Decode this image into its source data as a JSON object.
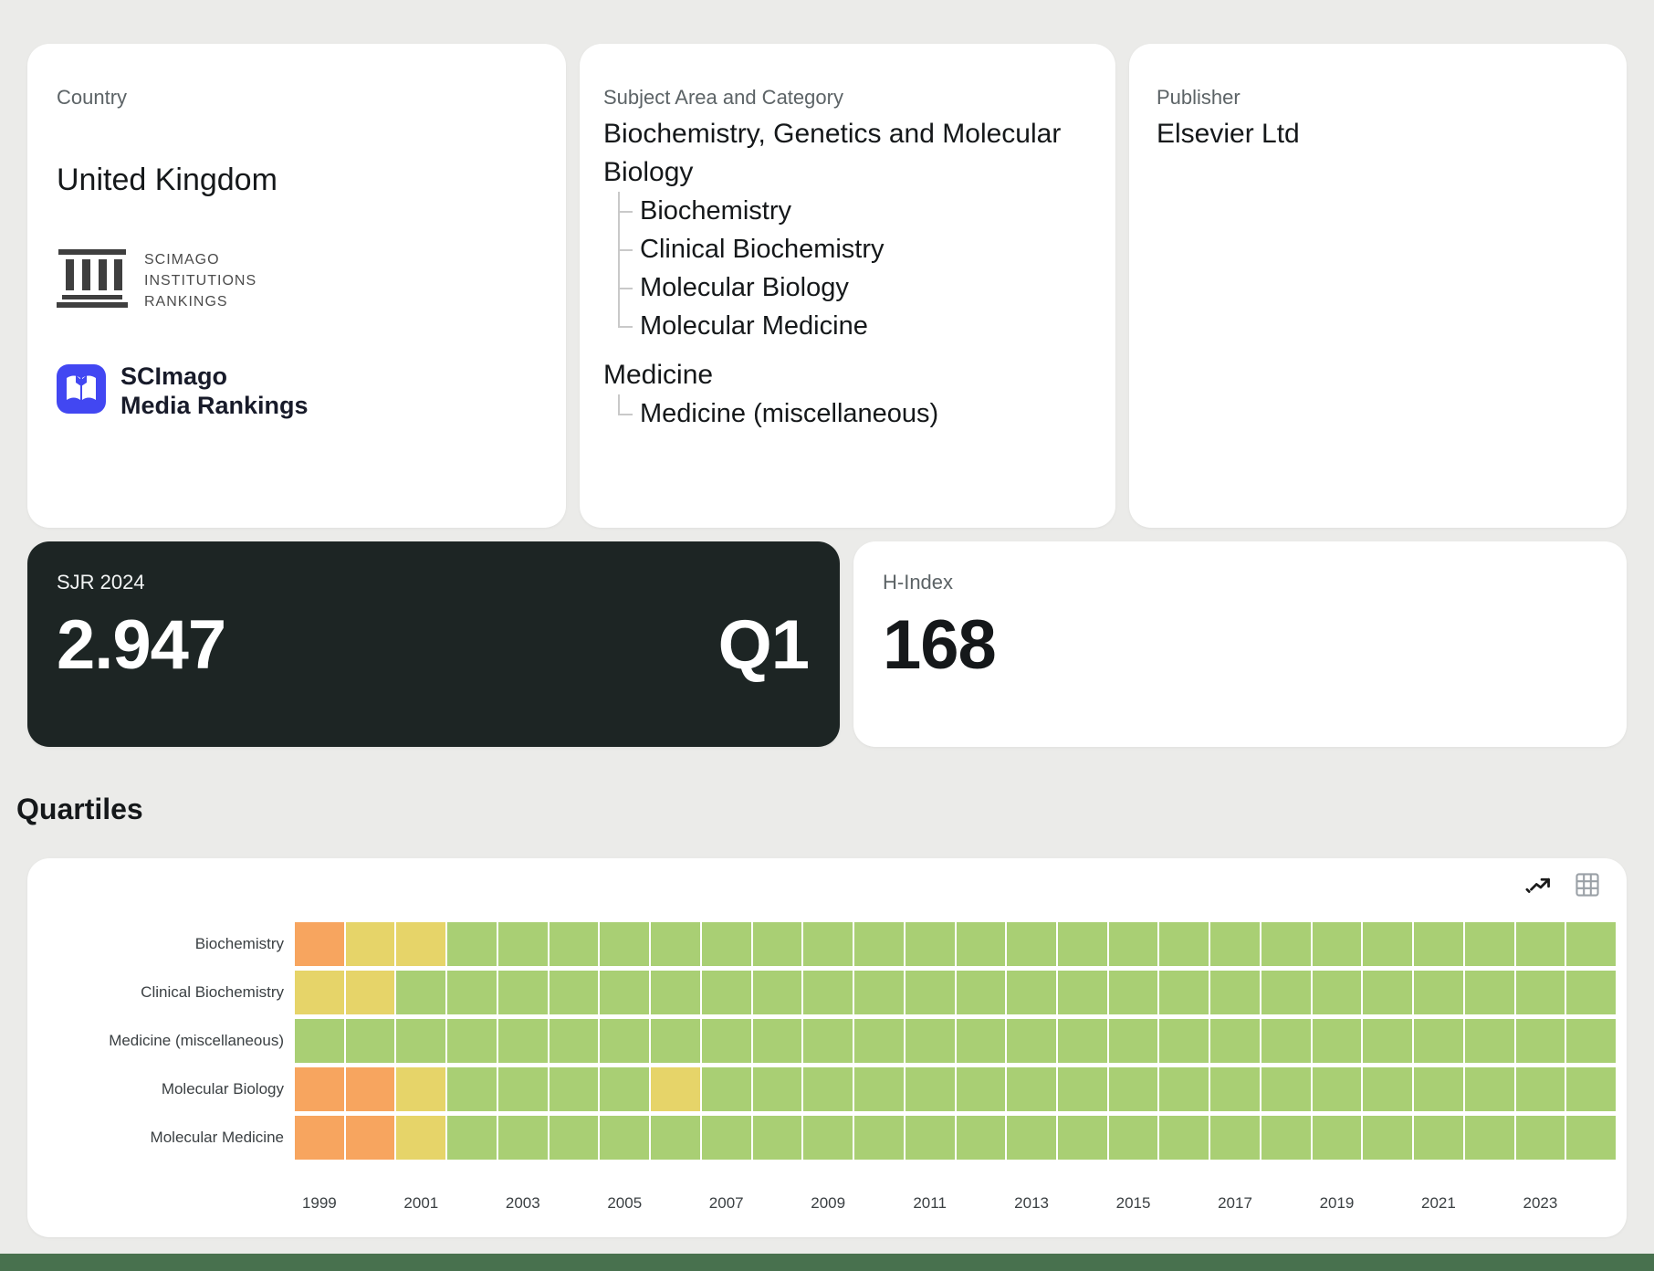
{
  "page": {
    "background": "#EBEBE9",
    "footer_color": "#48714E"
  },
  "cards": {
    "country": {
      "label": "Country",
      "value": "United Kingdom",
      "sir_logo": {
        "name": "scimago-institutions-rankings-logo",
        "lines": [
          "SCIMAGO",
          "INSTITUTIONS",
          "RANKINGS"
        ]
      },
      "media_logo": {
        "name": "scimago-media-rankings-logo",
        "lines": [
          "SCImago",
          "Media Rankings"
        ],
        "color": "#4247F2"
      }
    },
    "subject": {
      "label": "Subject Area and Category",
      "groups": [
        {
          "area": "Biochemistry, Genetics and Molecular Biology",
          "categories": [
            "Biochemistry",
            "Clinical Biochemistry",
            "Molecular Biology",
            "Molecular Medicine"
          ]
        },
        {
          "area": "Medicine",
          "categories": [
            "Medicine (miscellaneous)"
          ]
        }
      ]
    },
    "publisher": {
      "label": "Publisher",
      "value": "Elsevier Ltd"
    },
    "sjr": {
      "label": "SJR 2024",
      "value": "2.947",
      "quartile": "Q1",
      "background": "#1D2524"
    },
    "hindex": {
      "label": "H-Index",
      "value": "168"
    }
  },
  "quartiles_section": {
    "title": "Quartiles",
    "icons": [
      "line-chart-icon",
      "table-icon"
    ]
  },
  "chart_data": {
    "type": "heatmap",
    "title": "Quartiles",
    "xlabel": "",
    "ylabel": "",
    "grid": true,
    "legend_position": "none",
    "x_years": [
      1999,
      2000,
      2001,
      2002,
      2003,
      2004,
      2005,
      2006,
      2007,
      2008,
      2009,
      2010,
      2011,
      2012,
      2013,
      2014,
      2015,
      2016,
      2017,
      2018,
      2019,
      2020,
      2021,
      2022,
      2023,
      2024
    ],
    "x_tick_labels": [
      "1999",
      "2001",
      "2003",
      "2005",
      "2007",
      "2009",
      "2011",
      "2013",
      "2015",
      "2017",
      "2019",
      "2021",
      "2023"
    ],
    "categories": [
      "Biochemistry",
      "Clinical Biochemistry",
      "Medicine (miscellaneous)",
      "Molecular Biology",
      "Molecular Medicine"
    ],
    "series": [
      {
        "name": "Biochemistry",
        "quartiles": [
          "Q3",
          "Q2",
          "Q2",
          "Q1",
          "Q1",
          "Q1",
          "Q1",
          "Q1",
          "Q1",
          "Q1",
          "Q1",
          "Q1",
          "Q1",
          "Q1",
          "Q1",
          "Q1",
          "Q1",
          "Q1",
          "Q1",
          "Q1",
          "Q1",
          "Q1",
          "Q1",
          "Q1",
          "Q1",
          "Q1"
        ]
      },
      {
        "name": "Clinical Biochemistry",
        "quartiles": [
          "Q2",
          "Q2",
          "Q1",
          "Q1",
          "Q1",
          "Q1",
          "Q1",
          "Q1",
          "Q1",
          "Q1",
          "Q1",
          "Q1",
          "Q1",
          "Q1",
          "Q1",
          "Q1",
          "Q1",
          "Q1",
          "Q1",
          "Q1",
          "Q1",
          "Q1",
          "Q1",
          "Q1",
          "Q1",
          "Q1"
        ]
      },
      {
        "name": "Medicine (miscellaneous)",
        "quartiles": [
          "Q1",
          "Q1",
          "Q1",
          "Q1",
          "Q1",
          "Q1",
          "Q1",
          "Q1",
          "Q1",
          "Q1",
          "Q1",
          "Q1",
          "Q1",
          "Q1",
          "Q1",
          "Q1",
          "Q1",
          "Q1",
          "Q1",
          "Q1",
          "Q1",
          "Q1",
          "Q1",
          "Q1",
          "Q1",
          "Q1"
        ]
      },
      {
        "name": "Molecular Biology",
        "quartiles": [
          "Q3",
          "Q3",
          "Q2",
          "Q1",
          "Q1",
          "Q1",
          "Q1",
          "Q2",
          "Q1",
          "Q1",
          "Q1",
          "Q1",
          "Q1",
          "Q1",
          "Q1",
          "Q1",
          "Q1",
          "Q1",
          "Q1",
          "Q1",
          "Q1",
          "Q1",
          "Q1",
          "Q1",
          "Q1",
          "Q1"
        ]
      },
      {
        "name": "Molecular Medicine",
        "quartiles": [
          "Q3",
          "Q3",
          "Q2",
          "Q1",
          "Q1",
          "Q1",
          "Q1",
          "Q1",
          "Q1",
          "Q1",
          "Q1",
          "Q1",
          "Q1",
          "Q1",
          "Q1",
          "Q1",
          "Q1",
          "Q1",
          "Q1",
          "Q1",
          "Q1",
          "Q1",
          "Q1",
          "Q1",
          "Q1",
          "Q1"
        ]
      }
    ],
    "quartile_colors": {
      "Q1": "#A9CF74",
      "Q2": "#E6D469",
      "Q3": "#F7A55F"
    }
  }
}
